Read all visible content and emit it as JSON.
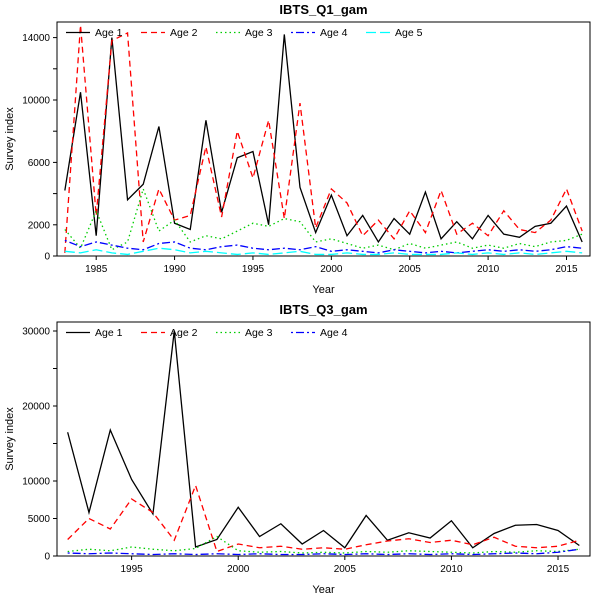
{
  "figure": {
    "background": "#ffffff"
  },
  "chart_data": [
    {
      "type": "line",
      "title": "IBTS_Q1_gam",
      "xlabel": "Year",
      "ylabel": "Survey index",
      "legend_position": "top-left-inside",
      "grid": false,
      "xlim": [
        1982.5,
        2016.5
      ],
      "ylim": [
        0,
        15000
      ],
      "x_ticks": [
        1985,
        1990,
        1995,
        2000,
        2005,
        2010,
        2015
      ],
      "y_ticks": [
        0,
        2000,
        4000,
        6000,
        8000,
        10000,
        12000,
        14000
      ],
      "y_tick_labels": [
        0,
        2000,
        6000,
        10000,
        14000
      ],
      "x": [
        1983,
        1984,
        1985,
        1986,
        1987,
        1988,
        1989,
        1990,
        1991,
        1992,
        1993,
        1994,
        1995,
        1996,
        1997,
        1998,
        1999,
        2000,
        2001,
        2002,
        2003,
        2004,
        2005,
        2006,
        2007,
        2008,
        2009,
        2010,
        2011,
        2012,
        2013,
        2014,
        2015,
        2016
      ],
      "series": [
        {
          "name": "Age 1",
          "color": "#000000",
          "dash": "",
          "line_type": "solid",
          "values": [
            4200,
            10500,
            1300,
            14000,
            3600,
            4600,
            8300,
            2100,
            1700,
            8700,
            2800,
            6300,
            6700,
            2000,
            14200,
            4400,
            1500,
            3900,
            1300,
            2600,
            900,
            2400,
            1400,
            4100,
            1100,
            2200,
            1100,
            2600,
            1400,
            1200,
            1900,
            2100,
            3200,
            900
          ]
        },
        {
          "name": "Age 2",
          "color": "#ff0000",
          "dash": "6,4",
          "line_type": "dashed",
          "values": [
            200,
            14800,
            2600,
            13800,
            14300,
            900,
            4300,
            2300,
            2600,
            7000,
            2500,
            8000,
            5000,
            8700,
            2400,
            9800,
            1800,
            4300,
            3400,
            1300,
            2300,
            1100,
            2900,
            1500,
            4200,
            1400,
            2100,
            1300,
            2900,
            1700,
            1500,
            2300,
            4300,
            1600
          ]
        },
        {
          "name": "Age 3",
          "color": "#00cd00",
          "dash": "1.5,3",
          "line_type": "dotted",
          "values": [
            1700,
            500,
            2900,
            400,
            900,
            4300,
            1600,
            2300,
            900,
            1300,
            1100,
            1600,
            2100,
            1900,
            2400,
            2200,
            900,
            1100,
            800,
            500,
            700,
            400,
            800,
            500,
            700,
            900,
            500,
            700,
            500,
            800,
            600,
            900,
            1000,
            1400
          ]
        },
        {
          "name": "Age 4",
          "color": "#0000ff",
          "dash": "2,3,8,3",
          "line_type": "dotdash",
          "values": [
            1000,
            600,
            900,
            700,
            500,
            400,
            800,
            900,
            500,
            400,
            600,
            700,
            500,
            400,
            500,
            400,
            600,
            300,
            400,
            300,
            200,
            400,
            300,
            200,
            300,
            200,
            300,
            400,
            300,
            400,
            300,
            400,
            600,
            500
          ]
        },
        {
          "name": "Age 5",
          "color": "#00ffff",
          "dash": "10,4",
          "line_type": "longdash",
          "values": [
            300,
            200,
            400,
            200,
            100,
            300,
            500,
            400,
            200,
            300,
            200,
            100,
            200,
            100,
            200,
            300,
            100,
            100,
            200,
            100,
            100,
            200,
            100,
            100,
            100,
            200,
            100,
            200,
            100,
            200,
            100,
            200,
            300,
            200
          ]
        }
      ]
    },
    {
      "type": "line",
      "title": "IBTS_Q3_gam",
      "xlabel": "Year",
      "ylabel": "Survey index",
      "legend_position": "top-left-inside",
      "grid": false,
      "xlim": [
        1991.5,
        2016.5
      ],
      "ylim": [
        0,
        31200
      ],
      "x_ticks": [
        1995,
        2000,
        2005,
        2010,
        2015
      ],
      "y_ticks": [
        0,
        5000,
        10000,
        15000,
        20000,
        25000,
        30000
      ],
      "y_tick_labels": [
        0,
        5000,
        10000,
        20000,
        30000
      ],
      "x": [
        1992,
        1993,
        1994,
        1995,
        1996,
        1997,
        1998,
        1999,
        2000,
        2001,
        2002,
        2003,
        2004,
        2005,
        2006,
        2007,
        2008,
        2009,
        2010,
        2011,
        2012,
        2013,
        2014,
        2015,
        2016
      ],
      "series": [
        {
          "name": "Age 1",
          "color": "#000000",
          "dash": "",
          "line_type": "solid",
          "values": [
            16500,
            5800,
            16800,
            10200,
            5600,
            30000,
            1200,
            2200,
            6500,
            2600,
            4300,
            1600,
            3400,
            1100,
            5400,
            2100,
            3100,
            2400,
            4700,
            1100,
            3000,
            4100,
            4200,
            3400,
            1400
          ]
        },
        {
          "name": "Age 2",
          "color": "#ff0000",
          "dash": "6,4",
          "line_type": "dashed",
          "values": [
            2200,
            5000,
            3600,
            7600,
            5800,
            2100,
            9400,
            600,
            1600,
            1100,
            1300,
            900,
            1100,
            900,
            1500,
            2000,
            2300,
            1800,
            2100,
            1500,
            2500,
            1300,
            1100,
            1300,
            2100
          ]
        },
        {
          "name": "Age 3",
          "color": "#00cd00",
          "dash": "1.5,3",
          "line_type": "dotted",
          "values": [
            600,
            900,
            700,
            1200,
            900,
            700,
            1000,
            2600,
            700,
            500,
            600,
            400,
            500,
            400,
            600,
            500,
            700,
            600,
            500,
            400,
            600,
            500,
            700,
            600,
            900
          ]
        },
        {
          "name": "Age 4",
          "color": "#0000ff",
          "dash": "2,3,8,3",
          "line_type": "dotdash",
          "values": [
            400,
            300,
            400,
            300,
            200,
            300,
            200,
            300,
            200,
            300,
            200,
            200,
            300,
            200,
            300,
            200,
            300,
            200,
            300,
            200,
            300,
            400,
            300,
            500,
            900
          ]
        }
      ]
    }
  ]
}
